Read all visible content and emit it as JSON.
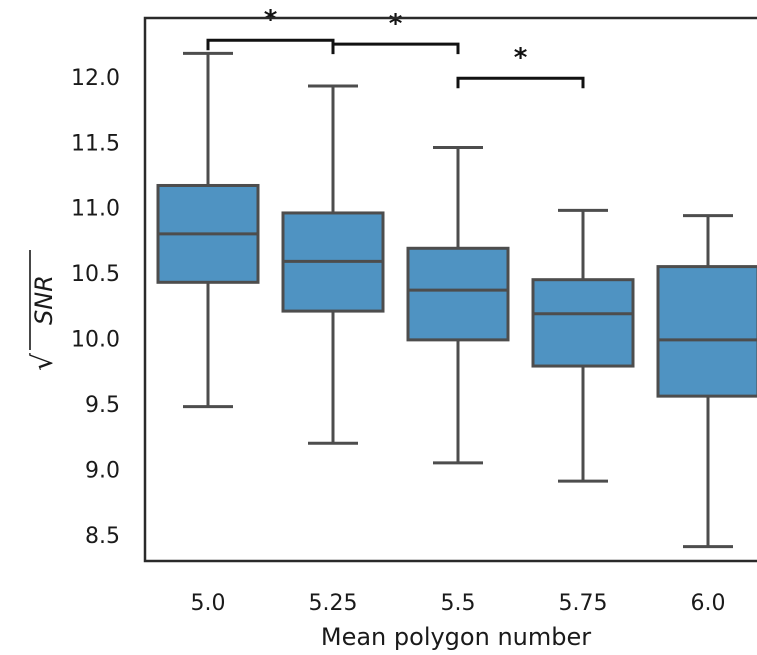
{
  "chart_data": {
    "type": "box",
    "title": "",
    "xlabel": "Mean polygon number",
    "ylabel": "SNR",
    "ylabel_prefix": "√",
    "ylim": [
      8.3,
      12.45
    ],
    "yticks": [
      8.5,
      9.0,
      9.5,
      10.0,
      10.5,
      11.0,
      11.5,
      12.0
    ],
    "ytick_labels": [
      "8.5",
      "9.0",
      "9.5",
      "10.0",
      "10.5",
      "11.0",
      "11.5",
      "12.0"
    ],
    "categories": [
      "5.0",
      "5.25",
      "5.5",
      "5.75",
      "6.0"
    ],
    "box_color": "#4f93c2",
    "line_color": "#4d4d4d",
    "grid": false,
    "boxes": [
      {
        "category": "5.0",
        "whisker_low": 9.48,
        "q1": 10.43,
        "median": 10.8,
        "q3": 11.17,
        "whisker_high": 12.18
      },
      {
        "category": "5.25",
        "whisker_low": 9.2,
        "q1": 10.21,
        "median": 10.59,
        "q3": 10.96,
        "whisker_high": 11.93
      },
      {
        "category": "5.5",
        "whisker_low": 9.05,
        "q1": 9.99,
        "median": 10.37,
        "q3": 10.69,
        "whisker_high": 11.46
      },
      {
        "category": "5.75",
        "whisker_low": 8.91,
        "q1": 9.79,
        "median": 10.19,
        "q3": 10.45,
        "whisker_high": 10.98
      },
      {
        "category": "6.0",
        "whisker_low": 8.41,
        "q1": 9.56,
        "median": 9.99,
        "q3": 10.55,
        "whisker_high": 10.94
      }
    ],
    "significance": [
      {
        "from": 0,
        "to": 1,
        "y": 12.28,
        "label": "*"
      },
      {
        "from": 1,
        "to": 2,
        "y": 12.25,
        "label": "*"
      },
      {
        "from": 2,
        "to": 3,
        "y": 11.99,
        "label": "*"
      }
    ]
  }
}
